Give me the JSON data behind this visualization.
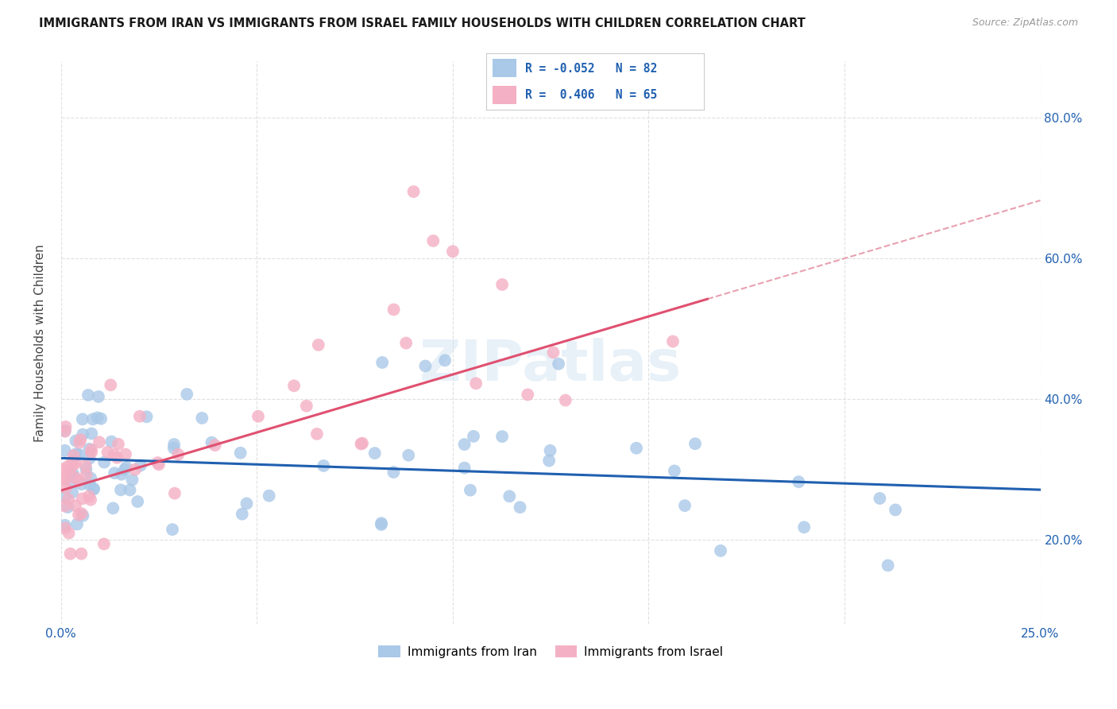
{
  "title": "IMMIGRANTS FROM IRAN VS IMMIGRANTS FROM ISRAEL FAMILY HOUSEHOLDS WITH CHILDREN CORRELATION CHART",
  "source": "Source: ZipAtlas.com",
  "ylabel": "Family Households with Children",
  "iran_R": -0.052,
  "iran_N": 82,
  "israel_R": 0.406,
  "israel_N": 65,
  "iran_color": "#aac8e8",
  "israel_color": "#f4b0c4",
  "iran_line_color": "#2060b0",
  "israel_line_color": "#e05070",
  "trendline_dashed_color": "#e8a0b0",
  "watermark": "ZIPatlas",
  "xlim": [
    0.0,
    0.25
  ],
  "ylim": [
    0.08,
    0.88
  ],
  "background_color": "#ffffff",
  "grid_color": "#e0e0e0",
  "iran_intercept": 0.316,
  "iran_slope": -0.18,
  "israel_intercept": 0.27,
  "israel_slope": 1.65,
  "israel_line_xmax": 0.165
}
